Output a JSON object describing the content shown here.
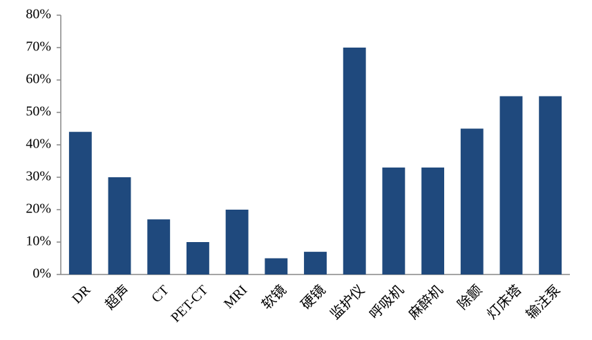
{
  "chart_data": {
    "type": "bar",
    "categories": [
      "DR",
      "超声",
      "CT",
      "PET-CT",
      "MRI",
      "软镜",
      "硬镜",
      "监护仪",
      "呼吸机",
      "麻醉机",
      "除颤",
      "灯床塔",
      "输注泵"
    ],
    "values": [
      44,
      30,
      17,
      10,
      20,
      5,
      7,
      70,
      33,
      33,
      45,
      55,
      55
    ],
    "color": "#1f497d",
    "ylim": [
      0,
      80
    ],
    "yticks": [
      {
        "value": 0,
        "label": "0%"
      },
      {
        "value": 10,
        "label": "10%"
      },
      {
        "value": 20,
        "label": "20%"
      },
      {
        "value": 30,
        "label": "30%"
      },
      {
        "value": 40,
        "label": "40%"
      },
      {
        "value": 50,
        "label": "50%"
      },
      {
        "value": 60,
        "label": "60%"
      },
      {
        "value": 70,
        "label": "70%"
      },
      {
        "value": 80,
        "label": "80%"
      }
    ],
    "grid": false
  }
}
